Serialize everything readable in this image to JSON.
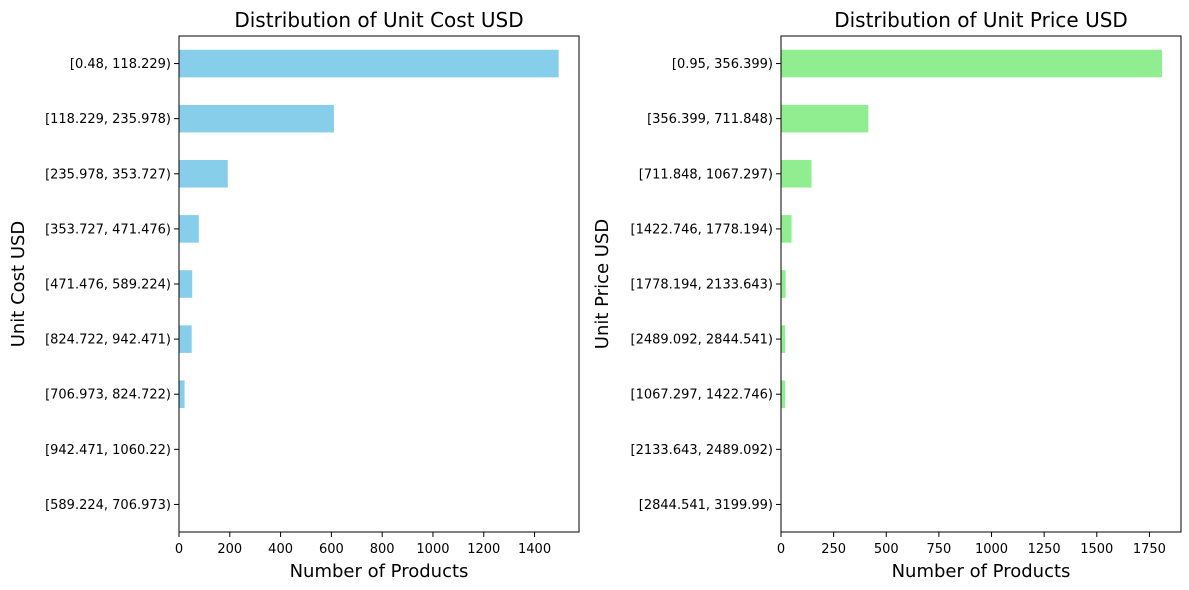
{
  "chart_data": [
    {
      "type": "bar",
      "orientation": "horizontal",
      "title": "Distribution of Unit Cost USD",
      "xlabel": "Number of Products",
      "ylabel": "Unit Cost USD",
      "color": "#87ceeb",
      "xlim": [
        0,
        1575
      ],
      "xticks": [
        0,
        200,
        400,
        600,
        800,
        1000,
        1200,
        1400
      ],
      "categories": [
        "[0.48, 118.229)",
        "[118.229, 235.978)",
        "[235.978, 353.727)",
        "[353.727, 471.476)",
        "[471.476, 589.224)",
        "[824.722, 942.471)",
        "[706.973, 824.722)",
        "[942.471, 1060.22)",
        "[589.224, 706.973)"
      ],
      "values": [
        1495,
        610,
        192,
        78,
        52,
        50,
        22,
        0,
        0
      ]
    },
    {
      "type": "bar",
      "orientation": "horizontal",
      "title": "Distribution of Unit Price USD",
      "xlabel": "Number of Products",
      "ylabel": "Unit Price USD",
      "color": "#90ee90",
      "xlim": [
        0,
        1900
      ],
      "xticks": [
        0,
        250,
        500,
        750,
        1000,
        1250,
        1500,
        1750
      ],
      "categories": [
        "[0.95, 356.399)",
        "[356.399, 711.848)",
        "[711.848, 1067.297)",
        "[1422.746, 1778.194)",
        "[1778.194, 2133.643)",
        "[2489.092, 2844.541)",
        "[1067.297, 1422.746)",
        "[2133.643, 2489.092)",
        "[2844.541, 3199.99)"
      ],
      "values": [
        1810,
        415,
        145,
        50,
        22,
        20,
        20,
        0,
        0
      ]
    }
  ]
}
